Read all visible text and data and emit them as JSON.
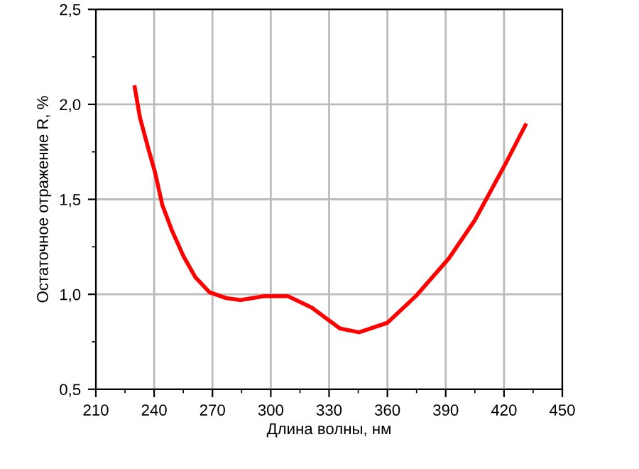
{
  "chart_data": {
    "type": "line",
    "xlabel": "Длина волны, нм",
    "ylabel": "Остаточное отражение R, %",
    "x": [
      230,
      232.7,
      236.9,
      240.5,
      244.2,
      249,
      255.1,
      261.2,
      268.5,
      277.1,
      284.4,
      296.6,
      308.8,
      321,
      335.6,
      345.4,
      360,
      374.6,
      391.7,
      405,
      420.9,
      431
    ],
    "series": [
      {
        "color": "#ff0000",
        "values": [
          2.09,
          1.93,
          1.77,
          1.64,
          1.47,
          1.34,
          1.2,
          1.09,
          1.01,
          0.98,
          0.97,
          0.99,
          0.99,
          0.93,
          0.82,
          0.8,
          0.85,
          0.99,
          1.19,
          1.39,
          1.69,
          1.89
        ]
      }
    ],
    "xlim": [
      210,
      450
    ],
    "xticks": [
      210,
      240,
      270,
      300,
      330,
      360,
      390,
      420,
      450
    ],
    "ylim": [
      0.5,
      2.5
    ],
    "yticks": [
      {
        "value": 0.5,
        "label": "0,5"
      },
      {
        "value": 1.0,
        "label": "1,0"
      },
      {
        "value": 1.5,
        "label": "1,5"
      },
      {
        "value": 2.0,
        "label": "2,0"
      },
      {
        "value": 2.5,
        "label": "2,5"
      }
    ],
    "grid": true,
    "marker": "none",
    "line_style": "solid"
  }
}
